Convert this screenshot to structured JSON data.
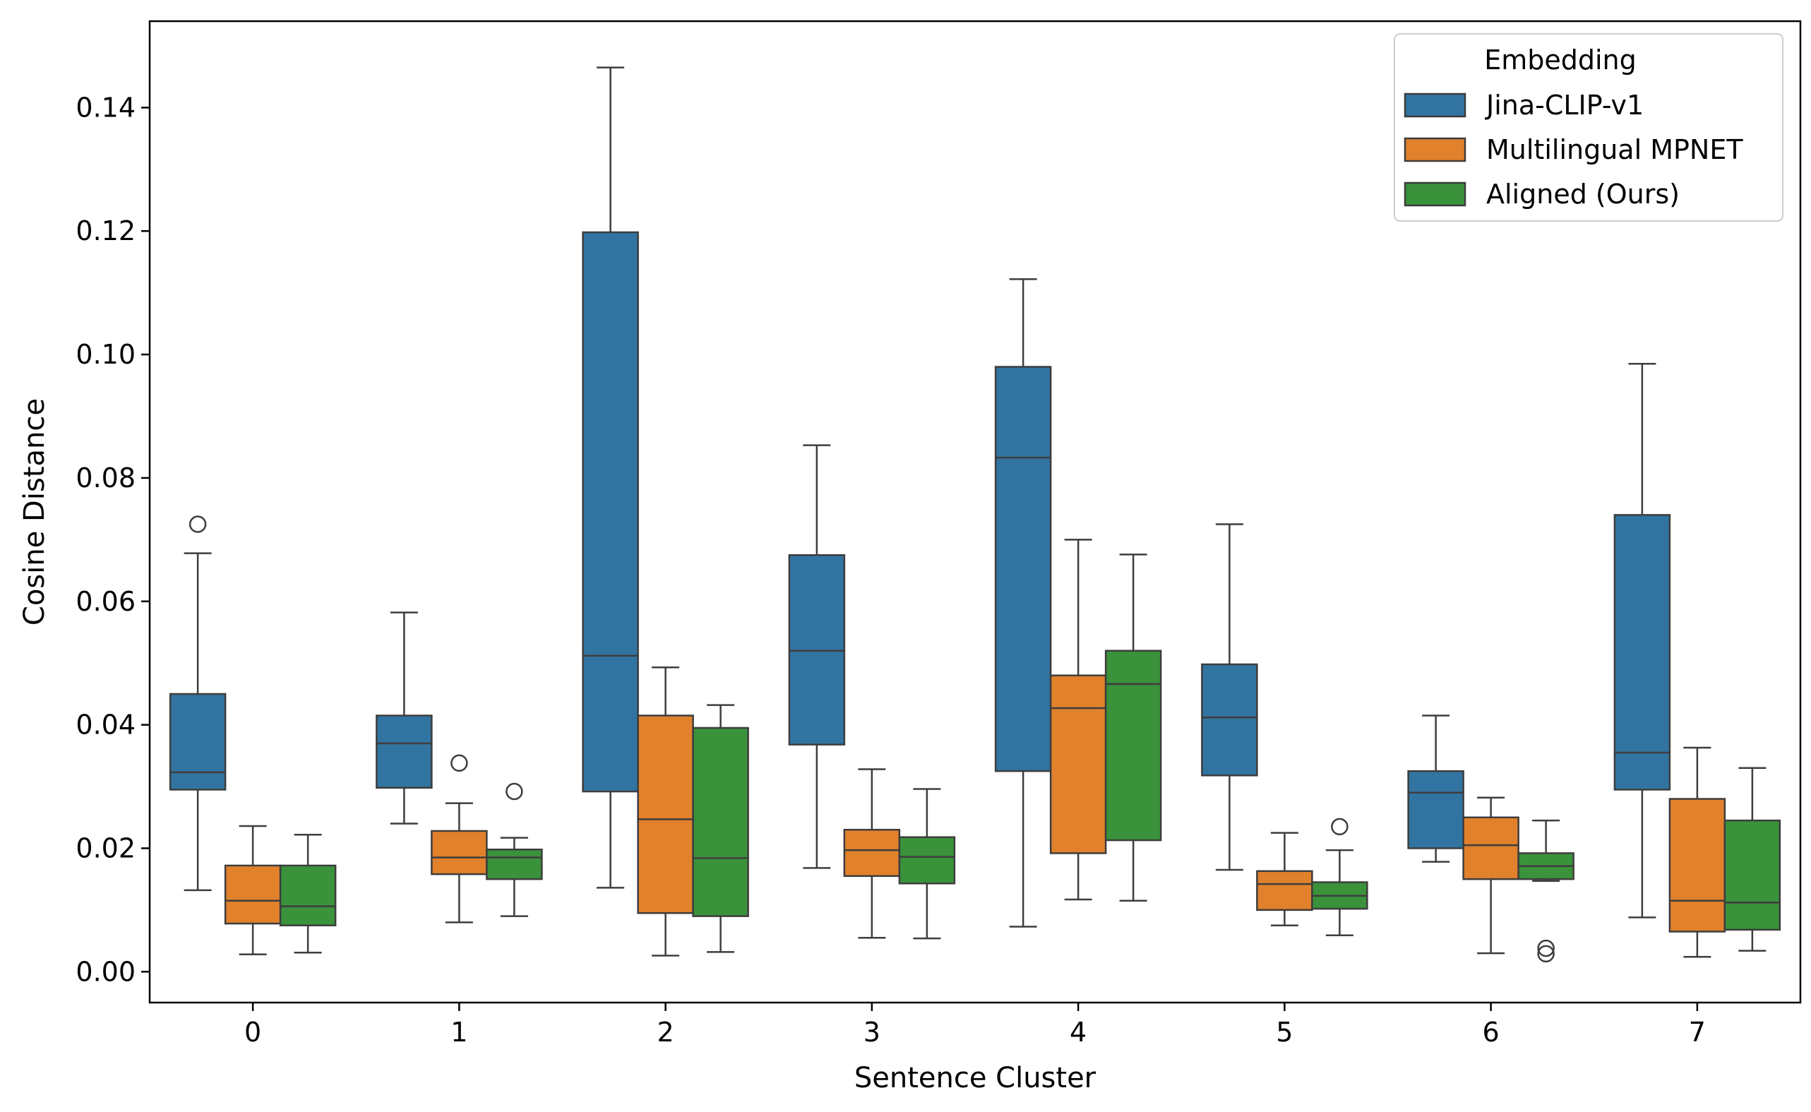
{
  "chart_data": {
    "type": "box",
    "title": "",
    "xlabel": "Sentence Cluster",
    "ylabel": "Cosine Distance",
    "categories": [
      "0",
      "1",
      "2",
      "3",
      "4",
      "5",
      "6",
      "7"
    ],
    "ylim": [
      -0.005,
      0.154
    ],
    "yticks": [
      "0.00",
      "0.02",
      "0.04",
      "0.06",
      "0.08",
      "0.10",
      "0.12",
      "0.14"
    ],
    "grid": false,
    "legend": {
      "title": "Embedding",
      "position": "top-right"
    },
    "series": [
      {
        "name": "Jina-CLIP-v1",
        "color": "#3274a1",
        "boxes": [
          {
            "whisker_low": 0.0132,
            "q1": 0.0295,
            "median": 0.0323,
            "q3": 0.045,
            "whisker_high": 0.0678,
            "outliers": [
              0.0725
            ]
          },
          {
            "whisker_low": 0.024,
            "q1": 0.0298,
            "median": 0.037,
            "q3": 0.0415,
            "whisker_high": 0.0582,
            "outliers": []
          },
          {
            "whisker_low": 0.0136,
            "q1": 0.0292,
            "median": 0.0512,
            "q3": 0.1198,
            "whisker_high": 0.1465,
            "outliers": []
          },
          {
            "whisker_low": 0.0168,
            "q1": 0.0368,
            "median": 0.052,
            "q3": 0.0675,
            "whisker_high": 0.0853,
            "outliers": []
          },
          {
            "whisker_low": 0.0073,
            "q1": 0.0325,
            "median": 0.0833,
            "q3": 0.098,
            "whisker_high": 0.1122,
            "outliers": []
          },
          {
            "whisker_low": 0.0165,
            "q1": 0.0318,
            "median": 0.0412,
            "q3": 0.0498,
            "whisker_high": 0.0725,
            "outliers": []
          },
          {
            "whisker_low": 0.0178,
            "q1": 0.02,
            "median": 0.029,
            "q3": 0.0325,
            "whisker_high": 0.0415,
            "outliers": []
          },
          {
            "whisker_low": 0.0088,
            "q1": 0.0295,
            "median": 0.0355,
            "q3": 0.074,
            "whisker_high": 0.0985,
            "outliers": []
          }
        ]
      },
      {
        "name": "Multilingual MPNET",
        "color": "#e1812c",
        "boxes": [
          {
            "whisker_low": 0.0028,
            "q1": 0.0078,
            "median": 0.0115,
            "q3": 0.0172,
            "whisker_high": 0.0236,
            "outliers": []
          },
          {
            "whisker_low": 0.008,
            "q1": 0.0158,
            "median": 0.0185,
            "q3": 0.0228,
            "whisker_high": 0.0273,
            "outliers": [
              0.0338
            ]
          },
          {
            "whisker_low": 0.0026,
            "q1": 0.0095,
            "median": 0.0247,
            "q3": 0.0415,
            "whisker_high": 0.0493,
            "outliers": []
          },
          {
            "whisker_low": 0.0055,
            "q1": 0.0155,
            "median": 0.0197,
            "q3": 0.023,
            "whisker_high": 0.0328,
            "outliers": []
          },
          {
            "whisker_low": 0.0117,
            "q1": 0.0192,
            "median": 0.0427,
            "q3": 0.048,
            "whisker_high": 0.07,
            "outliers": []
          },
          {
            "whisker_low": 0.0075,
            "q1": 0.01,
            "median": 0.0142,
            "q3": 0.0163,
            "whisker_high": 0.0225,
            "outliers": []
          },
          {
            "whisker_low": 0.003,
            "q1": 0.015,
            "median": 0.0205,
            "q3": 0.025,
            "whisker_high": 0.0282,
            "outliers": []
          },
          {
            "whisker_low": 0.0024,
            "q1": 0.0065,
            "median": 0.0115,
            "q3": 0.028,
            "whisker_high": 0.0363,
            "outliers": []
          }
        ]
      },
      {
        "name": "Aligned (Ours)",
        "color": "#3a923a",
        "boxes": [
          {
            "whisker_low": 0.0031,
            "q1": 0.0075,
            "median": 0.0106,
            "q3": 0.0172,
            "whisker_high": 0.0222,
            "outliers": []
          },
          {
            "whisker_low": 0.009,
            "q1": 0.015,
            "median": 0.0185,
            "q3": 0.0198,
            "whisker_high": 0.0217,
            "outliers": [
              0.0292
            ]
          },
          {
            "whisker_low": 0.0032,
            "q1": 0.009,
            "median": 0.0184,
            "q3": 0.0395,
            "whisker_high": 0.0432,
            "outliers": []
          },
          {
            "whisker_low": 0.0054,
            "q1": 0.0143,
            "median": 0.0186,
            "q3": 0.0218,
            "whisker_high": 0.0296,
            "outliers": []
          },
          {
            "whisker_low": 0.0115,
            "q1": 0.0213,
            "median": 0.0466,
            "q3": 0.052,
            "whisker_high": 0.0676,
            "outliers": []
          },
          {
            "whisker_low": 0.0059,
            "q1": 0.0102,
            "median": 0.0123,
            "q3": 0.0145,
            "whisker_high": 0.0197,
            "outliers": [
              0.0235
            ]
          },
          {
            "whisker_low": 0.0147,
            "q1": 0.015,
            "median": 0.0171,
            "q3": 0.0192,
            "whisker_high": 0.0245,
            "outliers": [
              0.0029,
              0.0038
            ]
          },
          {
            "whisker_low": 0.0034,
            "q1": 0.0068,
            "median": 0.0112,
            "q3": 0.0245,
            "whisker_high": 0.033,
            "outliers": []
          }
        ]
      }
    ]
  }
}
